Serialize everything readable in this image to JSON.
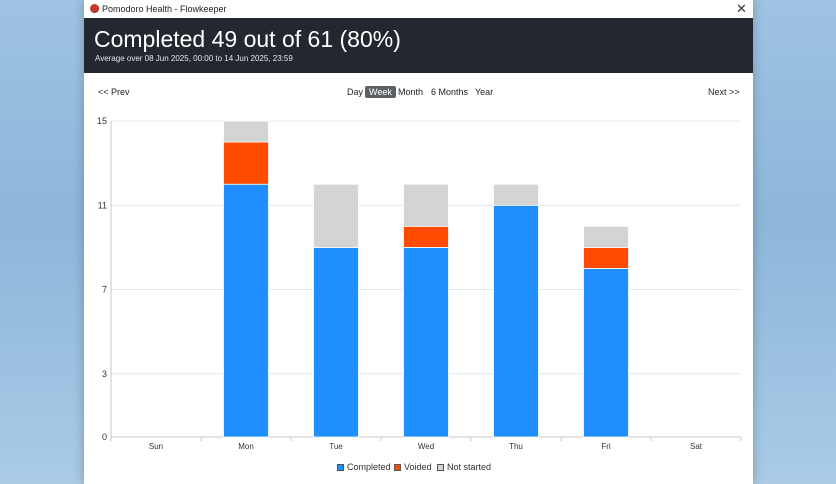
{
  "window": {
    "title": "Pomodoro Health - Flowkeeper",
    "close_glyph": "✕"
  },
  "header": {
    "title": "Completed 49 out of 61 (80%)",
    "subtitle": "Average over 08 Jun 2025, 00:00 to 14 Jun 2025, 23:59"
  },
  "nav": {
    "prev": "<< Prev",
    "next": "Next >>",
    "periods": [
      "Day",
      "Week",
      "Month",
      "6 Months",
      "Year"
    ],
    "selected": "Week"
  },
  "colors": {
    "completed": "#1f8fff",
    "voided": "#ff4a00",
    "not_started": "#d4d4d4",
    "header_bg": "#232730"
  },
  "chart_data": {
    "type": "bar",
    "stacked": true,
    "categories": [
      "Sun",
      "Mon",
      "Tue",
      "Wed",
      "Thu",
      "Fri",
      "Sat"
    ],
    "series": [
      {
        "name": "Completed",
        "values": [
          0,
          12,
          9,
          9,
          11,
          8,
          0
        ]
      },
      {
        "name": "Voided",
        "values": [
          0,
          2,
          0,
          1,
          0,
          1,
          0
        ]
      },
      {
        "name": "Not started",
        "values": [
          0,
          1,
          3,
          2,
          1,
          1,
          0
        ]
      }
    ],
    "yticks": [
      0,
      3,
      7,
      11,
      15
    ],
    "ylim": [
      0,
      15
    ],
    "legend_position": "bottom"
  }
}
